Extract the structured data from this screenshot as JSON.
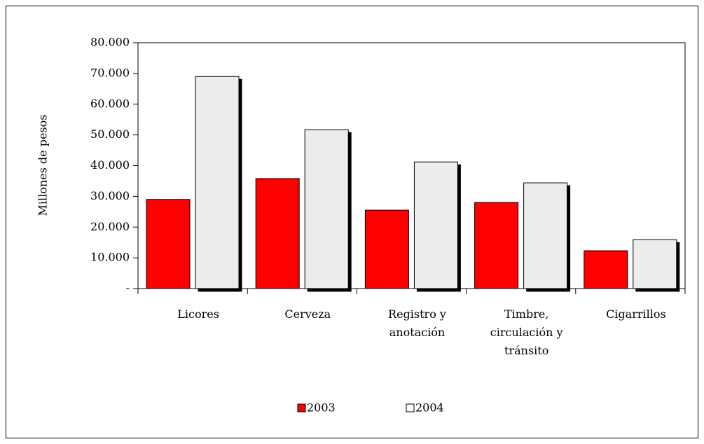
{
  "chart_data": {
    "type": "bar",
    "y_label": "Millones de pesos",
    "categories": [
      "Licores",
      "Cerveza",
      "Registro y anotación",
      "Timbre, circulación y tránsito",
      "Cigarrillos"
    ],
    "series": [
      {
        "name": "2003",
        "color": "#ff0000",
        "values": [
          29000,
          35800,
          25500,
          28000,
          12300
        ]
      },
      {
        "name": "2004",
        "color": "#ececec",
        "values": [
          69000,
          51700,
          41200,
          34400,
          15900
        ]
      }
    ],
    "ylim": [
      0,
      80000
    ],
    "yticks": [
      {
        "value": 0,
        "label": "-"
      },
      {
        "value": 10000,
        "label": "10.000"
      },
      {
        "value": 20000,
        "label": "20.000"
      },
      {
        "value": 30000,
        "label": "30.000"
      },
      {
        "value": 40000,
        "label": "40.000"
      },
      {
        "value": 50000,
        "label": "50.000"
      },
      {
        "value": 60000,
        "label": "60.000"
      },
      {
        "value": 70000,
        "label": "70.000"
      },
      {
        "value": 80000,
        "label": "80.000"
      }
    ],
    "legend": "bottom"
  }
}
